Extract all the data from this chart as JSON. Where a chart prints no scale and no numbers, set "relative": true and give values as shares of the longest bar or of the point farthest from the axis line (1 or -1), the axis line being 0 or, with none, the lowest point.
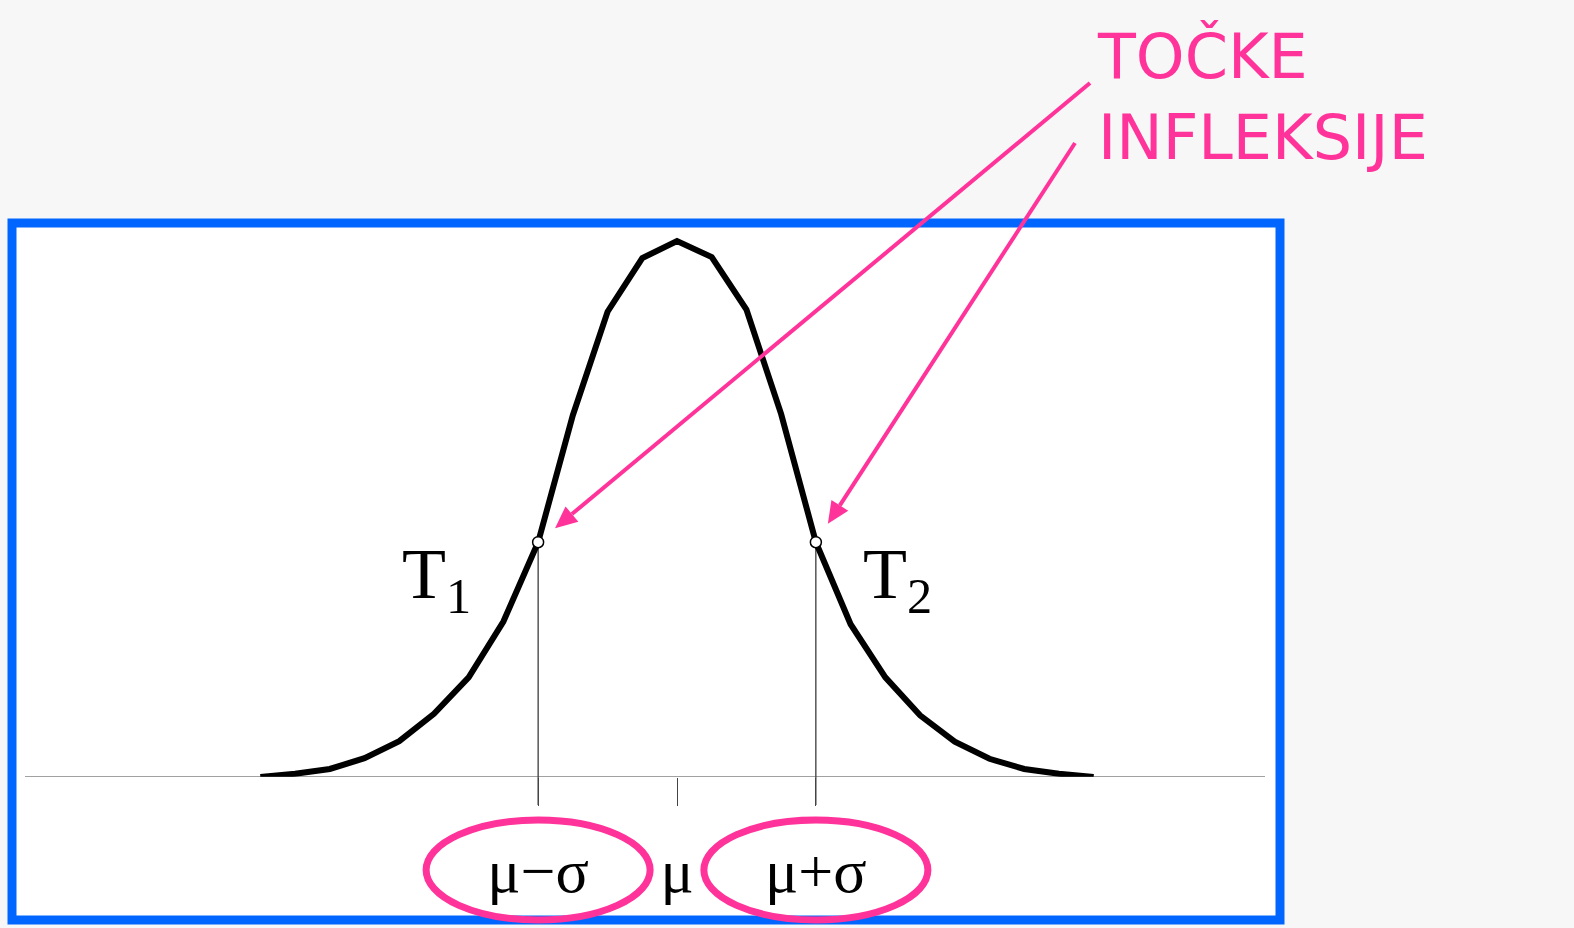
{
  "chart_data": {
    "type": "line",
    "relative": true,
    "categories": [
      null,
      null,
      null,
      null,
      null,
      null,
      null,
      null,
      "μ−σ",
      null,
      null,
      null,
      "μ",
      null,
      null,
      null,
      "μ+σ",
      null,
      null,
      null,
      null,
      null,
      null,
      null,
      null
    ],
    "series": [
      {
        "color": "#000000",
        "marker": "none",
        "values": [
          0,
          0.006,
          0.015,
          0.035,
          0.067,
          0.118,
          0.186,
          0.29,
          0.438,
          0.675,
          0.868,
          0.968,
          1,
          0.97,
          0.872,
          0.677,
          0.438,
          0.285,
          0.186,
          0.115,
          0.066,
          0.034,
          0.015,
          0.006,
          0
        ]
      },
      {
        "type": "scatter",
        "color": "#ffffff",
        "marker": "circle",
        "x": [
          "μ−σ",
          "μ+σ"
        ],
        "values": [
          0.438,
          0.438
        ]
      }
    ],
    "ref_lines": [
      {
        "axis": "x",
        "value": "μ−σ",
        "color": "#000000"
      },
      {
        "axis": "x",
        "value": "μ+σ",
        "color": "#000000"
      }
    ],
    "annotations": [
      {
        "text": "T$_{1}$",
        "x": "μ−σ",
        "y": 0.438
      },
      {
        "text": "T$_{2}$",
        "x": "μ+σ",
        "y": 0.438
      },
      "TOČKE INFLEKSIJE"
    ]
  }
}
